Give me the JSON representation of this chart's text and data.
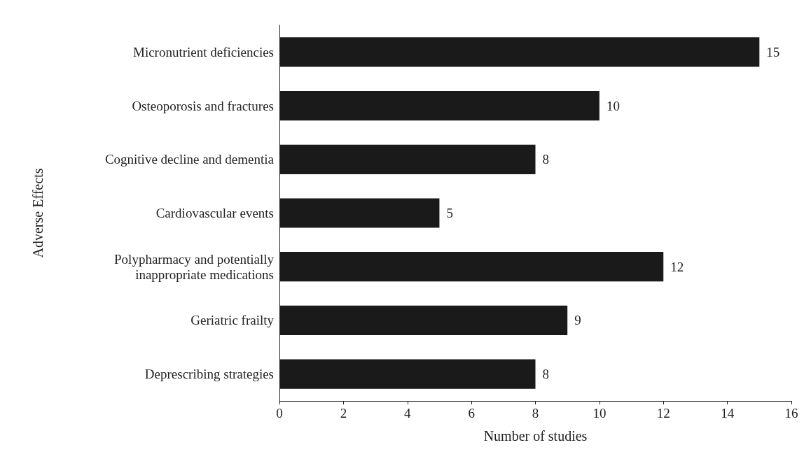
{
  "chart_data": {
    "type": "bar",
    "orientation": "horizontal",
    "xlabel": "Number of studies",
    "ylabel": "Adverse Effects",
    "categories": [
      "Micronutrient deficiencies",
      "Osteoporosis and fractures",
      "Cognitive decline and dementia",
      "Cardiovascular events",
      "Polypharmacy and potentially\ninappropriate medications",
      "Geriatric frailty",
      "Deprescribing strategies"
    ],
    "values": [
      15,
      10,
      8,
      5,
      12,
      9,
      8
    ],
    "color": "#1a1a1a",
    "data_labels": true,
    "xlim": [
      0,
      16
    ],
    "xticks": [
      0,
      2,
      4,
      6,
      8,
      10,
      12,
      14,
      16
    ],
    "grid": false
  }
}
